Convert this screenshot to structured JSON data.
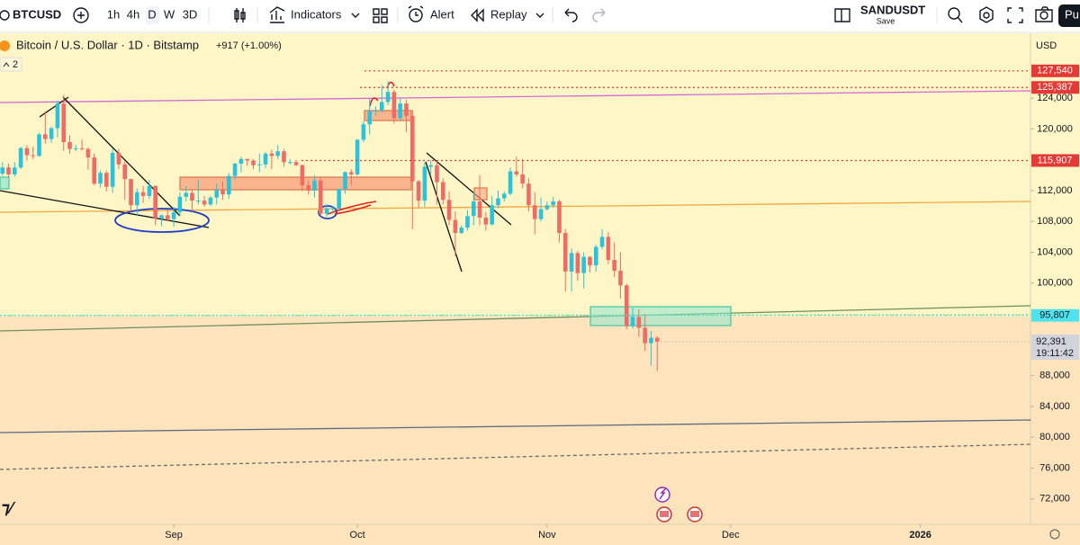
{
  "toolbar": {
    "symbol": "BTCUSD",
    "intervals": [
      "1h",
      "4h",
      "D",
      "W",
      "3D"
    ],
    "indicators": "Indicators",
    "alert": "Alert",
    "replay": "Replay",
    "layout_name": "SANDUSDT",
    "layout_status": "Save",
    "publish": "Pu"
  },
  "chart_data": {
    "type": "candlestick",
    "title": "Bitcoin / U.S. Dollar · 1D · Bitstamp",
    "change": "+917 (+1.00%)",
    "indicator_count": "2",
    "currency": "USD",
    "up_color": "#2bc3dc",
    "down_color": "#ef6b66",
    "candles": [
      [
        114200,
        115700,
        113900,
        115000
      ],
      [
        115000,
        115500,
        113700,
        114100
      ],
      [
        114100,
        115700,
        113800,
        115000
      ],
      [
        115000,
        117700,
        114800,
        117500
      ],
      [
        117500,
        117900,
        115900,
        116600
      ],
      [
        116600,
        117700,
        116100,
        116500
      ],
      [
        116500,
        119500,
        116400,
        119300
      ],
      [
        119300,
        122300,
        118100,
        118700
      ],
      [
        118700,
        120300,
        118200,
        120100
      ],
      [
        120100,
        123700,
        118900,
        123300
      ],
      [
        123300,
        124400,
        117200,
        118300
      ],
      [
        118300,
        119200,
        116800,
        117400
      ],
      [
        117400,
        117900,
        117100,
        117500
      ],
      [
        117500,
        118600,
        117200,
        117400
      ],
      [
        117400,
        117600,
        114700,
        116300
      ],
      [
        116300,
        116800,
        112700,
        112900
      ],
      [
        112900,
        114600,
        112400,
        114300
      ],
      [
        114300,
        114600,
        111900,
        112500
      ],
      [
        112500,
        117400,
        111700,
        116900
      ],
      [
        116900,
        117400,
        114800,
        115400
      ],
      [
        115400,
        115800,
        110800,
        113500
      ],
      [
        113500,
        113500,
        109300,
        110100
      ],
      [
        110100,
        112300,
        108700,
        111800
      ],
      [
        111800,
        112600,
        110400,
        111300
      ],
      [
        111300,
        113400,
        110900,
        112600
      ],
      [
        112600,
        112700,
        107500,
        108400
      ],
      [
        108400,
        108900,
        107400,
        108800
      ],
      [
        108800,
        109500,
        108100,
        108300
      ],
      [
        108300,
        109900,
        107300,
        109200
      ],
      [
        109200,
        111800,
        108700,
        111200
      ],
      [
        111200,
        112600,
        110600,
        111700
      ],
      [
        111700,
        112200,
        109300,
        110700
      ],
      [
        110700,
        113400,
        110200,
        110700
      ],
      [
        110700,
        111300,
        109900,
        110200
      ],
      [
        110200,
        111300,
        110000,
        111100
      ],
      [
        111100,
        112900,
        110200,
        112100
      ],
      [
        112100,
        113200,
        110800,
        111500
      ],
      [
        111500,
        114300,
        110900,
        113900
      ],
      [
        113900,
        115600,
        113400,
        115500
      ],
      [
        115500,
        116400,
        114400,
        116100
      ],
      [
        116100,
        116100,
        115200,
        115900
      ],
      [
        115900,
        116100,
        114800,
        115300
      ],
      [
        115300,
        116800,
        114400,
        115400
      ],
      [
        115400,
        117000,
        114900,
        116800
      ],
      [
        116800,
        117300,
        114800,
        116500
      ],
      [
        116500,
        117900,
        116100,
        117100
      ],
      [
        117100,
        117400,
        115100,
        115700
      ],
      [
        115700,
        116100,
        115400,
        115700
      ],
      [
        115700,
        116000,
        115200,
        115300
      ],
      [
        115300,
        115400,
        111900,
        112700
      ],
      [
        112700,
        113300,
        111500,
        112000
      ],
      [
        112000,
        114000,
        111100,
        113300
      ],
      [
        113300,
        113800,
        108700,
        109000
      ],
      [
        109000,
        110300,
        108600,
        109700
      ],
      [
        109700,
        110000,
        109100,
        109700
      ],
      [
        109700,
        112300,
        109300,
        112200
      ],
      [
        112200,
        114500,
        111600,
        114400
      ],
      [
        114400,
        114800,
        112700,
        114100
      ],
      [
        114100,
        118700,
        113900,
        118600
      ],
      [
        118600,
        121000,
        118300,
        120600
      ],
      [
        120600,
        123900,
        119300,
        122300
      ],
      [
        122300,
        122900,
        121700,
        122400
      ],
      [
        122400,
        125700,
        122100,
        123500
      ],
      [
        123500,
        126200,
        123100,
        124800
      ],
      [
        124800,
        125100,
        120700,
        121400
      ],
      [
        121400,
        124100,
        121100,
        123300
      ],
      [
        123300,
        123800,
        119600,
        121700
      ],
      [
        121700,
        122500,
        107000,
        113200
      ],
      [
        113200,
        113400,
        109700,
        110700
      ],
      [
        110700,
        115700,
        109900,
        115100
      ],
      [
        115100,
        116000,
        114100,
        115300
      ],
      [
        115300,
        115900,
        110200,
        113100
      ],
      [
        113100,
        113600,
        110200,
        110800
      ],
      [
        110800,
        111900,
        107500,
        108200
      ],
      [
        108200,
        109300,
        103500,
        106500
      ],
      [
        106500,
        107500,
        106400,
        107200
      ],
      [
        107200,
        109500,
        106800,
        108700
      ],
      [
        108700,
        111700,
        107500,
        110600
      ],
      [
        110600,
        114000,
        107500,
        108500
      ],
      [
        108500,
        109200,
        106800,
        107600
      ],
      [
        107600,
        111300,
        107500,
        110100
      ],
      [
        110100,
        112000,
        109700,
        111000
      ],
      [
        111000,
        111900,
        110600,
        111600
      ],
      [
        111600,
        115000,
        111400,
        114500
      ],
      [
        114500,
        116400,
        113800,
        114100
      ],
      [
        114100,
        116100,
        112300,
        112900
      ],
      [
        112900,
        113600,
        109300,
        110100
      ],
      [
        110100,
        111800,
        106300,
        108300
      ],
      [
        108300,
        111100,
        108000,
        109600
      ],
      [
        109600,
        110600,
        109400,
        110100
      ],
      [
        110100,
        111200,
        109800,
        110600
      ],
      [
        110600,
        110800,
        105300,
        106500
      ],
      [
        106500,
        107000,
        98900,
        101500
      ],
      [
        101500,
        104500,
        98900,
        103900
      ],
      [
        103900,
        104200,
        100300,
        101300
      ],
      [
        101300,
        104000,
        99300,
        103400
      ],
      [
        103400,
        103500,
        101400,
        102300
      ],
      [
        102300,
        105000,
        101500,
        104700
      ],
      [
        104700,
        107000,
        104400,
        106000
      ],
      [
        106000,
        106600,
        102500,
        103000
      ],
      [
        103000,
        105300,
        100800,
        101600
      ],
      [
        101600,
        104000,
        98000,
        99700
      ],
      [
        99700,
        99900,
        94000,
        94400
      ],
      [
        94400,
        96800,
        94100,
        95600
      ],
      [
        95600,
        96600,
        93000,
        94200
      ],
      [
        94200,
        96000,
        91200,
        92200
      ],
      [
        92200,
        93800,
        89300,
        92900
      ],
      [
        92900,
        93100,
        88600,
        92400
      ]
    ],
    "xlim": [
      -0.4,
      168
    ],
    "xticks": [
      {
        "value": 28,
        "label": "Sep"
      },
      {
        "value": 58,
        "label": "Oct"
      },
      {
        "value": 89,
        "label": "Nov"
      },
      {
        "value": 119,
        "label": "Dec"
      },
      {
        "value": 150,
        "label": "2026"
      }
    ],
    "ylim": [
      68700,
      132300
    ],
    "yticks": [
      {
        "value": 124000,
        "label": "124,000"
      },
      {
        "value": 120000,
        "label": "120,000"
      },
      {
        "value": 112000,
        "label": "112,000"
      },
      {
        "value": 108000,
        "label": "108,000"
      },
      {
        "value": 104000,
        "label": "104,000"
      },
      {
        "value": 100000,
        "label": "100,000"
      },
      {
        "value": 88000,
        "label": "88,000"
      },
      {
        "value": 84000,
        "label": "84,000"
      },
      {
        "value": 80000,
        "label": "80,000"
      },
      {
        "value": 76000,
        "label": "76,000"
      },
      {
        "value": 72000,
        "label": "72,000"
      }
    ],
    "price_lines": [
      {
        "value": 127540,
        "label": "127,540",
        "color": "#e53935"
      },
      {
        "value": 125387,
        "label": "125,387",
        "color": "#e53935"
      },
      {
        "value": 115907,
        "label": "115,907",
        "color": "#e53935"
      },
      {
        "value": 95807,
        "label": "95,807",
        "color": "#4fe3f0"
      }
    ],
    "last_price": {
      "value": 92391,
      "label": "92,391",
      "countdown": "19:11:42"
    }
  }
}
